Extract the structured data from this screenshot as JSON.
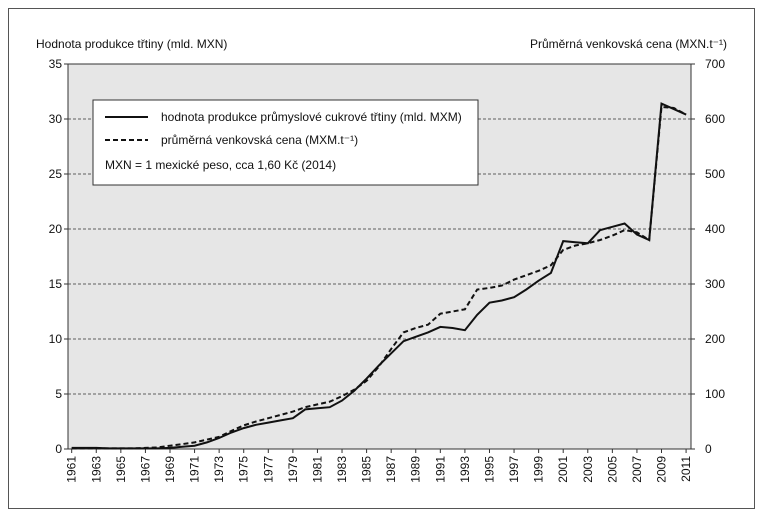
{
  "chart_data": {
    "type": "line",
    "y_label": "Hodnota produkce třtiny (mld. MXN)",
    "y2_label": "Průměrná venkovská cena (MXN.t⁻¹)",
    "x": [
      1961,
      1962,
      1963,
      1964,
      1965,
      1966,
      1967,
      1968,
      1969,
      1970,
      1971,
      1972,
      1973,
      1974,
      1975,
      1976,
      1977,
      1978,
      1979,
      1980,
      1981,
      1982,
      1983,
      1984,
      1985,
      1986,
      1987,
      1988,
      1989,
      1990,
      1991,
      1992,
      1993,
      1994,
      1995,
      1996,
      1997,
      1998,
      1999,
      2000,
      2001,
      2002,
      2003,
      2004,
      2005,
      2006,
      2007,
      2008,
      2009,
      2010,
      2011
    ],
    "xlim": [
      1960.7,
      2011.4
    ],
    "xticks": [
      1961,
      1963,
      1965,
      1967,
      1969,
      1971,
      1973,
      1975,
      1977,
      1979,
      1981,
      1983,
      1985,
      1987,
      1989,
      1991,
      1993,
      1995,
      1997,
      1999,
      2001,
      2003,
      2005,
      2007,
      2009,
      2011
    ],
    "ylim": [
      0,
      35
    ],
    "yticks": [
      0,
      5,
      10,
      15,
      20,
      25,
      30,
      35
    ],
    "y2lim": [
      0,
      700
    ],
    "y2ticks": [
      0,
      100,
      200,
      300,
      400,
      500,
      600,
      700
    ],
    "grid": true,
    "legend": "upper left",
    "annotation": "MXN = 1 mexické peso, cca 1,60 Kč (2014)",
    "series": [
      {
        "name": "hodnota produkce průmyslové cukrové třtiny (mld. MXM)",
        "color": "#111111",
        "dash": false,
        "axis": "y",
        "values": [
          0.1,
          0.1,
          0.1,
          0.05,
          0.05,
          0.05,
          0.05,
          0.05,
          0.1,
          0.2,
          0.3,
          0.6,
          1.0,
          1.5,
          1.9,
          2.2,
          2.4,
          2.6,
          2.8,
          3.6,
          3.7,
          3.8,
          4.4,
          5.3,
          6.4,
          7.6,
          8.7,
          9.8,
          10.2,
          10.6,
          11.1,
          11.0,
          10.8,
          12.2,
          13.3,
          13.5,
          13.8,
          14.5,
          15.3,
          16.0,
          18.9,
          18.8,
          18.7,
          19.9,
          20.2,
          20.5,
          19.5,
          19.0,
          31.4,
          30.9,
          30.4
        ]
      },
      {
        "name": "průměrná venkovská cena (MXM.t⁻¹)",
        "color": "#111111",
        "dash": true,
        "axis": "y2",
        "values": [
          1,
          1,
          1,
          1,
          1,
          1,
          2,
          3,
          6,
          9,
          12,
          17,
          22,
          33,
          43,
          50,
          56,
          62,
          68,
          76,
          81,
          86,
          96,
          108,
          124,
          150,
          182,
          212,
          220,
          226,
          246,
          250,
          254,
          290,
          293,
          297,
          308,
          316,
          324,
          334,
          362,
          370,
          374,
          380,
          388,
          398,
          394,
          380,
          622,
          620,
          608
        ]
      }
    ]
  }
}
